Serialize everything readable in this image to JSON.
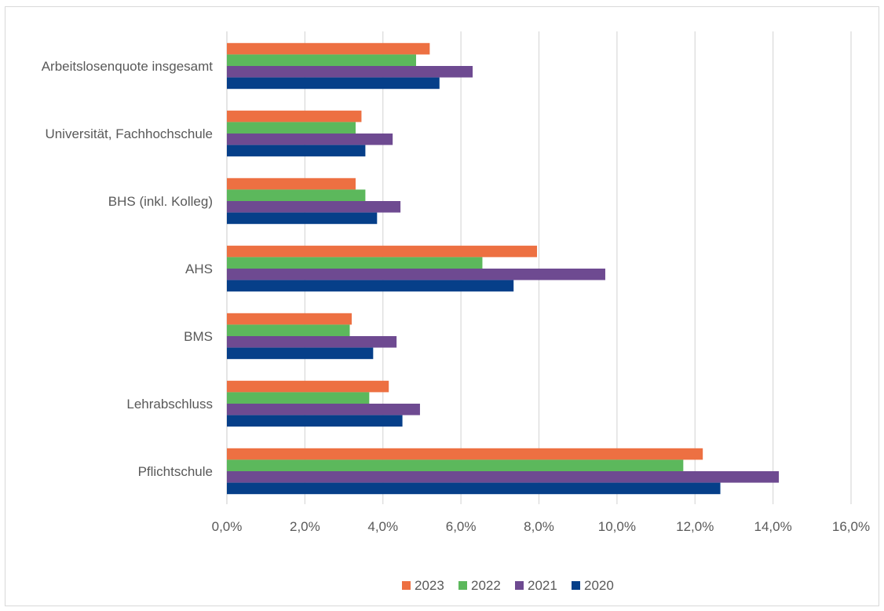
{
  "chart_data": {
    "type": "bar",
    "orientation": "horizontal",
    "title": "",
    "xlabel": "",
    "ylabel": "",
    "categories": [
      "Arbeitslosenquote insgesamt",
      "Universität, Fachhochschule",
      "BHS (inkl. Kolleg)",
      "AHS",
      "BMS",
      "Lehrabschluss",
      "Pflichtschule"
    ],
    "series": [
      {
        "name": "2023",
        "color": "#ED7042",
        "values": [
          5.2,
          3.45,
          3.3,
          7.95,
          3.2,
          4.15,
          12.2
        ]
      },
      {
        "name": "2022",
        "color": "#5CB85C",
        "values": [
          4.85,
          3.3,
          3.55,
          6.55,
          3.15,
          3.65,
          11.7
        ]
      },
      {
        "name": "2021",
        "color": "#6E4A91",
        "values": [
          6.3,
          4.25,
          4.45,
          9.7,
          4.35,
          4.95,
          14.15
        ]
      },
      {
        "name": "2020",
        "color": "#063F89",
        "values": [
          5.45,
          3.55,
          3.85,
          7.35,
          3.75,
          4.5,
          12.65
        ]
      }
    ],
    "xlim": [
      0,
      16
    ],
    "xticks": [
      "0,0%",
      "2,0%",
      "4,0%",
      "6,0%",
      "8,0%",
      "10,0%",
      "12,0%",
      "14,0%",
      "16,0%"
    ],
    "grid": "vertical",
    "legend_position": "bottom"
  }
}
